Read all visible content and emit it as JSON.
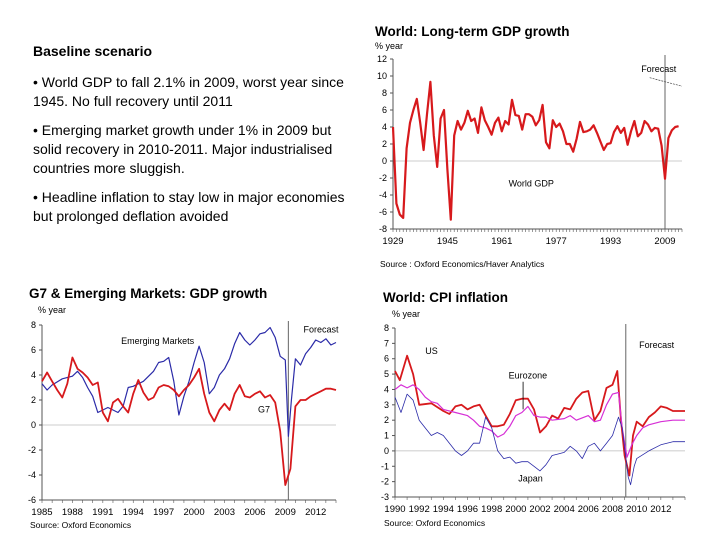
{
  "text": {
    "heading": "Baseline scenario",
    "bullets": [
      "• World GDP to fall 2.1% in 2009, worst year since 1945. No full recovery until 2011",
      "• Emerging market growth under 1% in 2009 but solid recovery in 2010-2011. Major industrialised countries more sluggish.",
      "• Headline inflation to stay low in major economies but prolonged deflation avoided"
    ]
  },
  "colors": {
    "red": "#d7191c",
    "blue": "#2b2ba8",
    "magenta": "#d62fd6",
    "axis": "#555555"
  },
  "chart_data": [
    {
      "type": "line",
      "title": "World: Long-term GDP growth",
      "ylabel": "% year",
      "source": "Source : Oxford Economics/Haver Analytics",
      "ylim": [
        -8,
        12
      ],
      "yticks": [
        -8,
        -6,
        -4,
        -2,
        0,
        2,
        4,
        6,
        8,
        10,
        12
      ],
      "xlim": [
        1929,
        2014
      ],
      "xticks": [
        1929,
        1945,
        1961,
        1977,
        1993,
        2009
      ],
      "forecast_x": 2009,
      "annotations": [
        {
          "text": "Forecast",
          "x": 2002,
          "y": 10.5
        },
        {
          "text": "World GDP",
          "x": 1963,
          "y": -3
        }
      ],
      "series": [
        {
          "name": "World GDP",
          "color": "#d7191c",
          "x": [
            1929,
            1930,
            1931,
            1932,
            1933,
            1934,
            1935,
            1936,
            1937,
            1938,
            1939,
            1940,
            1941,
            1942,
            1943,
            1944,
            1945,
            1946,
            1947,
            1948,
            1949,
            1950,
            1951,
            1952,
            1953,
            1954,
            1955,
            1956,
            1957,
            1958,
            1959,
            1960,
            1961,
            1962,
            1963,
            1964,
            1965,
            1966,
            1967,
            1968,
            1969,
            1970,
            1971,
            1972,
            1973,
            1974,
            1975,
            1976,
            1977,
            1978,
            1979,
            1980,
            1981,
            1982,
            1983,
            1984,
            1985,
            1986,
            1987,
            1988,
            1989,
            1990,
            1991,
            1992,
            1993,
            1994,
            1995,
            1996,
            1997,
            1998,
            1999,
            2000,
            2001,
            2002,
            2003,
            2004,
            2005,
            2006,
            2007,
            2008,
            2009,
            2010,
            2011,
            2012,
            2013
          ],
          "y": [
            4,
            -5,
            -6.3,
            -6.7,
            1.5,
            4.5,
            6,
            7.3,
            4.5,
            1.3,
            5.5,
            9.3,
            3,
            -0.7,
            5,
            6,
            -1,
            -6.9,
            3,
            4.7,
            3.7,
            4.5,
            5.9,
            4.7,
            5,
            3.3,
            6.3,
            4.8,
            4,
            3.1,
            4.5,
            5.1,
            3.5,
            4.7,
            4.3,
            7.2,
            5.4,
            5.3,
            3.7,
            5.5,
            5.5,
            5.2,
            4.2,
            4.8,
            6.6,
            2.2,
            1.5,
            4.8,
            4,
            4.4,
            3.5,
            2,
            2,
            1.1,
            2.6,
            4.6,
            3.4,
            3.5,
            3.7,
            4.2,
            3.3,
            2.3,
            1.3,
            2,
            2.1,
            3.4,
            4.1,
            3.3,
            3.9,
            1.9,
            3.5,
            4.7,
            2.9,
            3.3,
            4.7,
            4.3,
            3.5,
            3.9,
            3.8,
            1.8,
            -2.1,
            2.7,
            3.6,
            4,
            4.1
          ]
        }
      ]
    },
    {
      "type": "line",
      "title": "G7 & Emerging Markets: GDP growth",
      "ylabel": "% year",
      "source": "Source: Oxford Economics",
      "ylim": [
        -6,
        8
      ],
      "yticks": [
        -6,
        -4,
        -2,
        0,
        2,
        4,
        6,
        8
      ],
      "xlim": [
        1985,
        2014
      ],
      "xticks": [
        1985,
        1988,
        1991,
        1994,
        1997,
        2000,
        2003,
        2006,
        2009,
        2012
      ],
      "forecast_x": 2009.3,
      "annotations": [
        {
          "text": "Forecast",
          "x": 2010.8,
          "y": 7.4
        },
        {
          "text": "Emerging Markets",
          "x": 1992.8,
          "y": 6.5
        },
        {
          "text": "G7",
          "x": 2006.3,
          "y": 1
        }
      ],
      "series": [
        {
          "name": "Emerging Markets",
          "color": "#2b2ba8",
          "x": [
            1985,
            1985.5,
            1986,
            1987,
            1988,
            1988.5,
            1989,
            1989.5,
            1990,
            1990.5,
            1991,
            1991.5,
            1992,
            1992.5,
            1993,
            1993.5,
            1994,
            1995,
            1996,
            1996.5,
            1997,
            1997.5,
            1998,
            1998.5,
            1999,
            1999.5,
            2000,
            2000.5,
            2001,
            2001.5,
            2002,
            2002.5,
            2003,
            2003.5,
            2004,
            2004.5,
            2005,
            2005.5,
            2006,
            2006.5,
            2007,
            2007.5,
            2008,
            2008.5,
            2009,
            2009.3,
            2009.6,
            2010,
            2010.5,
            2011,
            2011.5,
            2012,
            2012.5,
            2013,
            2013.5,
            2014
          ],
          "y": [
            3.3,
            2.8,
            3.2,
            3.7,
            3.9,
            4.3,
            3.8,
            3,
            2.3,
            1,
            1.2,
            1.4,
            1.2,
            1,
            1.5,
            3,
            3.1,
            3.5,
            4.3,
            5,
            5.1,
            5.4,
            3.5,
            0.8,
            2.3,
            3.5,
            5,
            6.3,
            5,
            2.5,
            3,
            4,
            4.5,
            5.3,
            6.5,
            7.4,
            6.8,
            6.4,
            6.8,
            7.3,
            7.4,
            7.8,
            7,
            5.5,
            5.2,
            -0.9,
            2,
            5.3,
            4.8,
            5.7,
            6.2,
            6.8,
            6.6,
            6.9,
            6.4,
            6.6
          ]
        },
        {
          "name": "G7",
          "color": "#d7191c",
          "x": [
            1985,
            1985.5,
            1986,
            1986.5,
            1987,
            1987.5,
            1988,
            1988.5,
            1989,
            1989.5,
            1990,
            1990.5,
            1991,
            1991.5,
            1992,
            1992.5,
            1993,
            1993.5,
            1994,
            1994.5,
            1995,
            1995.5,
            1996,
            1996.5,
            1997,
            1997.5,
            1998,
            1998.5,
            1999,
            1999.5,
            2000,
            2000.5,
            2001,
            2001.5,
            2002,
            2002.5,
            2003,
            2003.5,
            2004,
            2004.5,
            2005,
            2005.5,
            2006,
            2006.5,
            2007,
            2007.5,
            2008,
            2008.5,
            2009,
            2009.5,
            2010,
            2010.5,
            2011,
            2011.5,
            2012,
            2012.5,
            2013,
            2013.5,
            2014
          ],
          "y": [
            3.5,
            4.2,
            3.5,
            2.8,
            2.2,
            3.3,
            5.4,
            4.5,
            4.2,
            3.8,
            3.2,
            3.4,
            1,
            0.3,
            1.8,
            2.1,
            1.5,
            1,
            2.5,
            3.6,
            2.6,
            2,
            2.2,
            3,
            3.2,
            3.1,
            2.8,
            2.3,
            2.8,
            3.2,
            3.8,
            4.5,
            2.5,
            1,
            0.3,
            1.2,
            1.7,
            1.2,
            2.5,
            3.2,
            2.3,
            2.2,
            2.5,
            2.7,
            2.2,
            2.4,
            1.8,
            -0.5,
            -4.8,
            -3.5,
            1.5,
            2,
            2,
            2.3,
            2.5,
            2.7,
            2.9,
            2.9,
            2.8
          ]
        }
      ]
    },
    {
      "type": "line",
      "title": "World: CPI inflation",
      "ylabel": "% year",
      "source": "Source: Oxford Economics",
      "ylim": [
        -3,
        8
      ],
      "yticks": [
        -3,
        -2,
        -1,
        0,
        1,
        2,
        3,
        4,
        5,
        6,
        7,
        8
      ],
      "xlim": [
        1990,
        2014
      ],
      "xticks": [
        1990,
        1992,
        1994,
        1996,
        1998,
        2000,
        2002,
        2004,
        2006,
        2008,
        2010,
        2012
      ],
      "forecast_x": 2009.1,
      "annotations": [
        {
          "text": "Forecast",
          "x": 2010.2,
          "y": 6.7
        },
        {
          "text": "US",
          "x": 1992.5,
          "y": 6.3
        },
        {
          "text": "Eurozone",
          "x": 1999.4,
          "y": 4.7
        },
        {
          "text": "Japan",
          "x": 2000.2,
          "y": -2
        }
      ],
      "series": [
        {
          "name": "US",
          "color": "#d7191c",
          "x": [
            1990,
            1990.4,
            1991,
            1991.5,
            1992,
            1993,
            1994,
            1994.5,
            1995,
            1995.5,
            1996,
            1996.5,
            1997,
            1997.5,
            1998,
            1998.5,
            1999,
            1999.5,
            2000,
            2000.5,
            2001,
            2001.5,
            2002,
            2002.5,
            2003,
            2003.5,
            2004,
            2004.5,
            2005,
            2005.5,
            2006,
            2006.5,
            2007,
            2007.5,
            2008,
            2008.4,
            2008.7,
            2009,
            2009.4,
            2009.7,
            2010,
            2010.5,
            2011,
            2011.5,
            2012,
            2012.5,
            2013,
            2014
          ],
          "y": [
            5.2,
            4.6,
            6.2,
            5,
            3,
            3.1,
            2.6,
            2.4,
            2.9,
            3,
            2.7,
            2.9,
            3,
            2.3,
            1.6,
            1.6,
            1.7,
            2.4,
            3.3,
            3.4,
            3.4,
            2.7,
            1.2,
            1.6,
            2.3,
            2.1,
            2.8,
            2.7,
            3.4,
            3.8,
            3.9,
            2,
            2.6,
            4.1,
            4.3,
            5.2,
            2,
            -0.3,
            -1.6,
            1,
            1.9,
            1.6,
            2.2,
            2.5,
            2.9,
            2.8,
            2.6,
            2.6
          ]
        },
        {
          "name": "Eurozone",
          "color": "#d62fd6",
          "x": [
            1990,
            1990.5,
            1991,
            1991.5,
            1992,
            1992.5,
            1993,
            1993.5,
            1994,
            1995,
            1996,
            1996.5,
            1997,
            1997.5,
            1998,
            1998.5,
            1999,
            1999.5,
            2000,
            2000.5,
            2001,
            2001.5,
            2002,
            2002.5,
            2003,
            2004,
            2004.5,
            2005,
            2006,
            2006.5,
            2007,
            2007.5,
            2008,
            2008.5,
            2008.8,
            2009.2,
            2009.6,
            2010,
            2010.5,
            2011,
            2012,
            2013,
            2014
          ],
          "y": [
            4,
            4.3,
            4.1,
            4.3,
            4,
            3.5,
            3.2,
            3.1,
            2.7,
            2.5,
            2.3,
            2,
            1.6,
            1.5,
            1.3,
            0.9,
            1.1,
            1.6,
            2.3,
            2.5,
            2.9,
            2.3,
            2.2,
            2.2,
            2,
            2.1,
            2.3,
            2,
            2.3,
            1.9,
            2,
            3,
            3.7,
            3.8,
            1.5,
            -0.4,
            0.4,
            1,
            1.5,
            1.7,
            1.9,
            2,
            2
          ]
        },
        {
          "name": "Japan",
          "color": "#2b2ba8",
          "x": [
            1990,
            1990.5,
            1991,
            1991.5,
            1992,
            1992.5,
            1993,
            1993.5,
            1994,
            1994.5,
            1995,
            1995.5,
            1996,
            1996.5,
            1997,
            1997.5,
            1998,
            1998.5,
            1999,
            1999.5,
            2000,
            2000.5,
            2001,
            2001.5,
            2002,
            2002.5,
            2003,
            2003.5,
            2004,
            2004.5,
            2005,
            2005.5,
            2006,
            2006.5,
            2007,
            2007.5,
            2008,
            2008.5,
            2008.8,
            2009.3,
            2009.5,
            2009.8,
            2010,
            2011,
            2012,
            2013,
            2014
          ],
          "y": [
            3.5,
            2.5,
            3.7,
            3.3,
            2,
            1.5,
            1,
            1.2,
            1,
            0.5,
            0,
            -0.3,
            0,
            0.5,
            0.5,
            2.2,
            1.5,
            0,
            -0.5,
            -0.4,
            -0.8,
            -0.7,
            -0.7,
            -1,
            -1.3,
            -0.9,
            -0.3,
            -0.2,
            -0.1,
            0.3,
            0,
            -0.5,
            0.3,
            0.5,
            0,
            0.5,
            1,
            2.2,
            1.5,
            -1.7,
            -2.2,
            -1,
            -0.5,
            0,
            0.4,
            0.6,
            0.6
          ]
        }
      ]
    }
  ]
}
